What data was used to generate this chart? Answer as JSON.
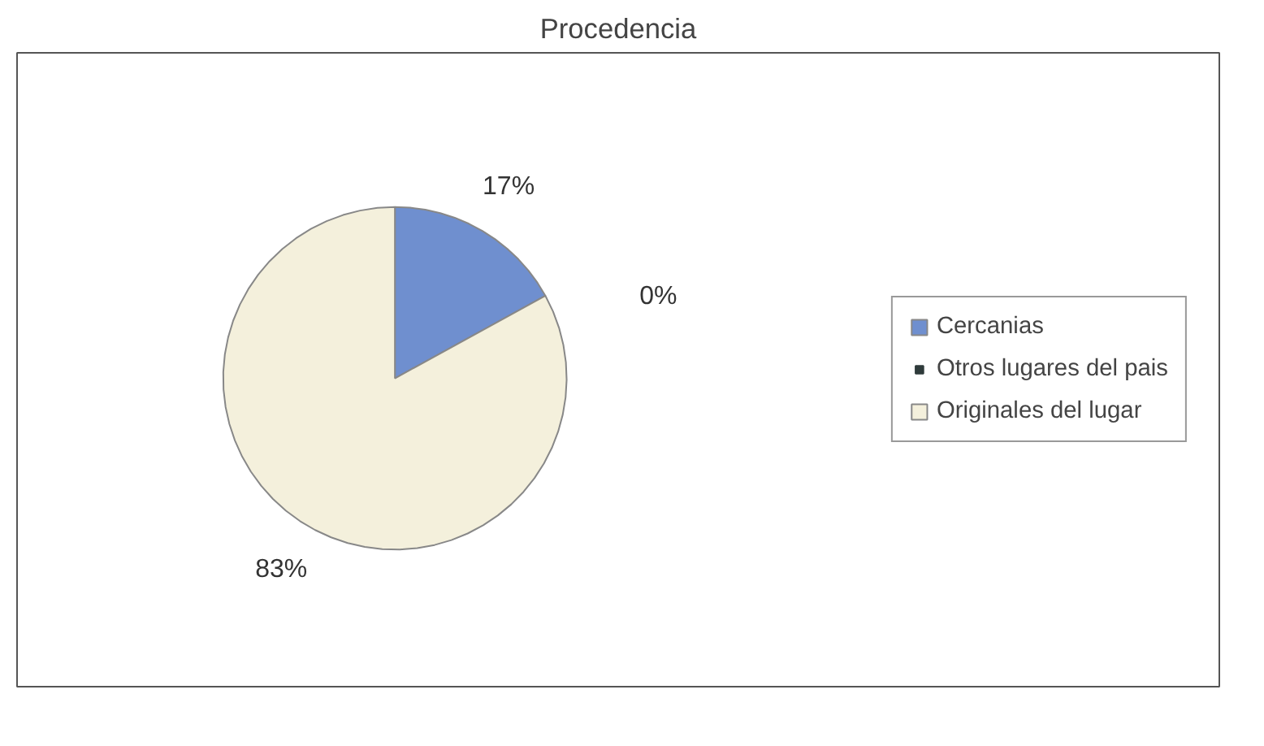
{
  "chart_data": {
    "type": "pie",
    "title": "Procedencia",
    "categories": [
      "Cercanias",
      "Otros lugares del pais",
      "Originales del lugar"
    ],
    "values": [
      17,
      0,
      83
    ],
    "colors": [
      "#6f8fcf",
      "#2f3b3b",
      "#f4f0dc"
    ],
    "value_labels": [
      "17%",
      "0%",
      "83%"
    ],
    "legend": "right"
  }
}
